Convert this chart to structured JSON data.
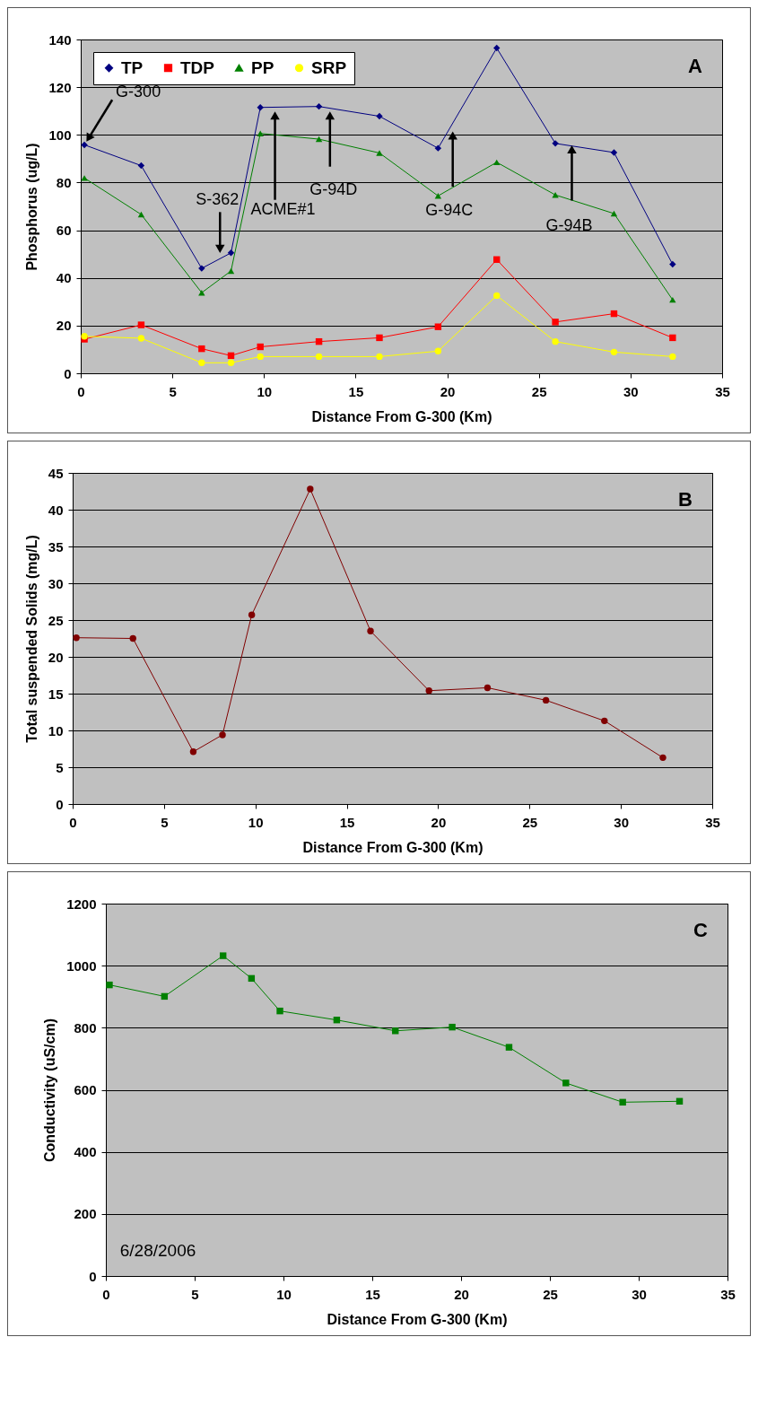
{
  "chart_data": [
    {
      "type": "line",
      "xlabel": "Distance From G-300 (Km)",
      "ylabel": "Phosphorus (ug/L)",
      "x": [
        0.2,
        3.3,
        6.6,
        8.2,
        9.8,
        13,
        16.3,
        19.5,
        22.7,
        25.9,
        29.1,
        32.3
      ],
      "series": [
        {
          "name": "TP",
          "color": "#000080",
          "marker": "diamond",
          "values": [
            95.8,
            87.1,
            44,
            50.5,
            111.5,
            111.9,
            107.8,
            94.4,
            136.4,
            96.4,
            92.6,
            45.7
          ]
        },
        {
          "name": "TDP",
          "color": "#ff0000",
          "marker": "square",
          "values": [
            14.3,
            20.3,
            10.3,
            7.4,
            11.1,
            13.3,
            14.9,
            19.5,
            47.7,
            21.5,
            25,
            14.9
          ]
        },
        {
          "name": "PP",
          "color": "#008000",
          "marker": "triangle",
          "values": [
            81.9,
            66.6,
            33.8,
            42.9,
            100.6,
            98.2,
            92.4,
            74.4,
            88.5,
            74.8,
            67,
            30.8
          ]
        },
        {
          "name": "SRP",
          "color": "#ffff00",
          "marker": "circle",
          "values": [
            15.5,
            14.7,
            4.4,
            4.4,
            7,
            7,
            7,
            9.3,
            32.6,
            13.3,
            8.9,
            7
          ]
        }
      ],
      "xlim": [
        0,
        35
      ],
      "xticks": [
        0,
        5,
        10,
        15,
        20,
        25,
        30,
        35
      ],
      "ylim": [
        0,
        140
      ],
      "yticks": [
        0,
        20,
        40,
        60,
        80,
        100,
        120,
        140
      ],
      "grid": "y",
      "legend": "top left",
      "line_style": "solid",
      "annotations": [
        {
          "text": "G-300",
          "x": 0.3,
          "y": 97
        },
        {
          "text": "S-362",
          "x": 7.6,
          "y": 50.3
        },
        {
          "text": "ACME#1",
          "x": 10.6,
          "y": 110
        },
        {
          "text": "G-94D",
          "x": 13.6,
          "y": 110
        },
        {
          "text": "G-94C",
          "x": 20.3,
          "y": 101.6
        },
        {
          "text": "G-94B",
          "x": 26.8,
          "y": 95.8
        },
        "A"
      ]
    },
    {
      "type": "line",
      "xlabel": "Distance From G-300 (Km)",
      "ylabel": "Total suspended Solids (mg/L)",
      "x": [
        0.2,
        3.3,
        6.6,
        8.2,
        9.8,
        13,
        16.3,
        19.5,
        22.7,
        25.9,
        29.1,
        32.3
      ],
      "series": [
        {
          "color": "#800000",
          "marker": "circle",
          "values": [
            22.6,
            22.5,
            7.1,
            9.4,
            25.7,
            42.8,
            23.5,
            15.4,
            15.8,
            14.1,
            11.3,
            6.3
          ]
        }
      ],
      "xlim": [
        0,
        35
      ],
      "xticks": [
        0,
        5,
        10,
        15,
        20,
        25,
        30,
        35
      ],
      "ylim": [
        0,
        45
      ],
      "yticks": [
        0,
        5,
        10,
        15,
        20,
        25,
        30,
        35,
        40,
        45
      ],
      "grid": "y",
      "line_style": "solid",
      "annotations": [
        "B"
      ]
    },
    {
      "type": "line",
      "xlabel": "Distance From G-300 (Km)",
      "ylabel": "Conductivity (uS/cm)",
      "x": [
        0.2,
        3.3,
        6.6,
        8.2,
        9.8,
        13,
        16.3,
        19.5,
        22.7,
        25.9,
        29.1,
        32.3
      ],
      "series": [
        {
          "color": "#008000",
          "marker": "square",
          "values": [
            938,
            901,
            1032,
            959,
            854,
            825,
            790,
            802,
            737,
            622,
            560,
            563
          ]
        }
      ],
      "xlim": [
        0,
        35
      ],
      "xticks": [
        0,
        5,
        10,
        15,
        20,
        25,
        30,
        35
      ],
      "ylim": [
        0,
        1200
      ],
      "yticks": [
        0,
        200,
        400,
        600,
        800,
        1000,
        1200
      ],
      "grid": "y",
      "line_style": "solid",
      "annotations": [
        "C",
        "6/28/2006"
      ]
    }
  ]
}
